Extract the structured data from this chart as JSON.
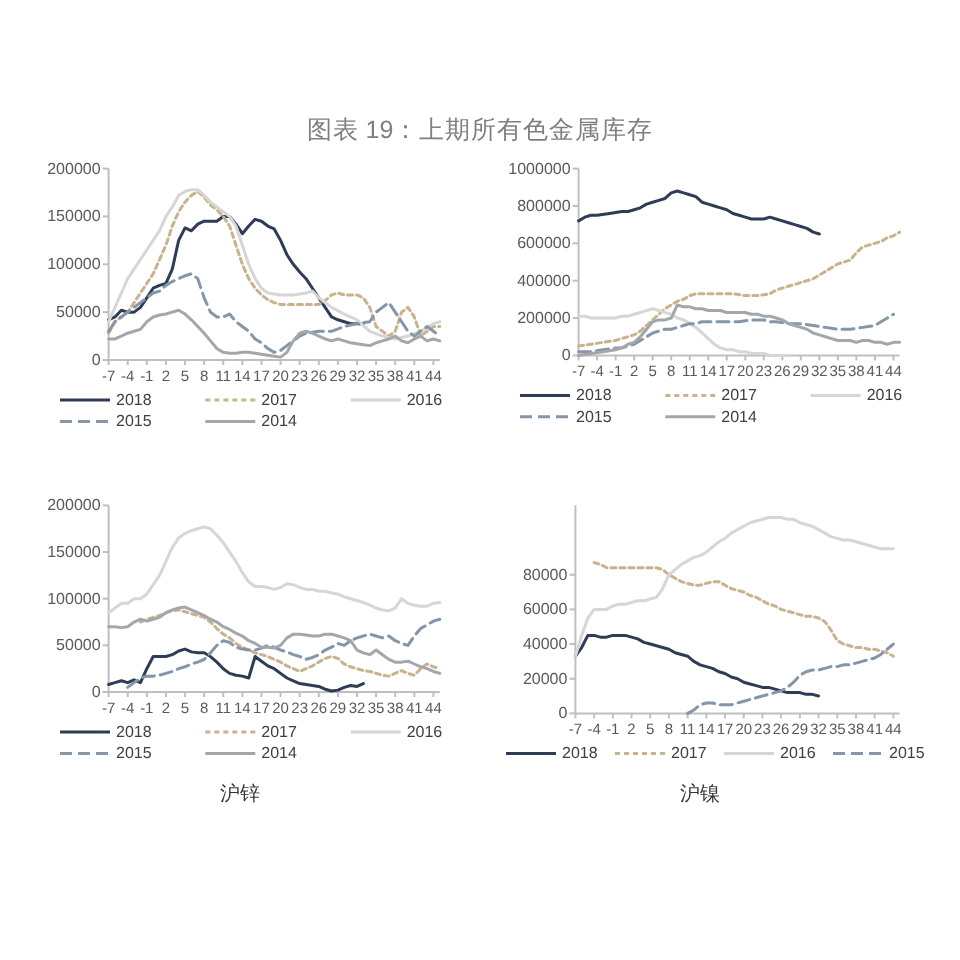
{
  "chart_data": [
    {
      "type": "line",
      "title": "图表 19：上期所有色金属库存",
      "xlim": [
        -7,
        45
      ],
      "xticks": [
        -7,
        -4,
        -1,
        2,
        5,
        8,
        11,
        14,
        17,
        20,
        23,
        26,
        29,
        32,
        35,
        38,
        41,
        44
      ],
      "ylim": [
        0,
        200000
      ],
      "yticks": [
        0,
        50000,
        100000,
        150000,
        200000
      ],
      "legend": "bottom",
      "series": [
        {
          "name": "2018",
          "color": "#2e3d55",
          "line_style": "solid",
          "x": [
            -7,
            -6,
            -5,
            -4,
            -3,
            -2,
            -1,
            0,
            1,
            2,
            3,
            4,
            5,
            6,
            7,
            8,
            9,
            10,
            11,
            12,
            13,
            14,
            15,
            16,
            17,
            18,
            19,
            20,
            21,
            22,
            23,
            24,
            25,
            26,
            27,
            28,
            29,
            30,
            31,
            32,
            33
          ],
          "values": [
            42000,
            45000,
            52000,
            50000,
            50000,
            55000,
            65000,
            75000,
            78000,
            80000,
            95000,
            125000,
            138000,
            135000,
            142000,
            145000,
            145000,
            145000,
            150000,
            150000,
            142000,
            132000,
            140000,
            147000,
            145000,
            140000,
            137000,
            125000,
            110000,
            100000,
            92000,
            85000,
            75000,
            65000,
            55000,
            45000,
            42000,
            40000,
            38000,
            38000,
            38000
          ]
        },
        {
          "name": "2017",
          "color": "#c8b38e",
          "line_style": "dotted",
          "x": [
            -7,
            -6,
            -5,
            -4,
            -3,
            -2,
            -1,
            0,
            1,
            2,
            3,
            4,
            5,
            6,
            7,
            8,
            9,
            10,
            11,
            12,
            13,
            14,
            15,
            16,
            17,
            18,
            19,
            20,
            22,
            24,
            26,
            27,
            28,
            29,
            30,
            32,
            33,
            34,
            35,
            36,
            37,
            38,
            39,
            40,
            41,
            42,
            43,
            44,
            45
          ],
          "values": [
            28000,
            40000,
            45000,
            50000,
            60000,
            70000,
            80000,
            90000,
            105000,
            120000,
            140000,
            155000,
            165000,
            172000,
            176000,
            170000,
            162000,
            157000,
            150000,
            140000,
            120000,
            100000,
            85000,
            75000,
            68000,
            63000,
            60000,
            58000,
            58000,
            58000,
            58000,
            62000,
            68000,
            70000,
            68000,
            68000,
            65000,
            55000,
            35000,
            30000,
            25000,
            30000,
            50000,
            55000,
            45000,
            25000,
            30000,
            35000,
            35000
          ]
        },
        {
          "name": "2016",
          "color": "#d6d6d6",
          "line_style": "solid",
          "x": [
            -7,
            -6,
            -5,
            -4,
            -3,
            -2,
            -1,
            0,
            1,
            2,
            3,
            4,
            5,
            6,
            7,
            8,
            9,
            10,
            11,
            12,
            13,
            14,
            15,
            16,
            17,
            18,
            20,
            22,
            24,
            25,
            26,
            28,
            30,
            32,
            34,
            36,
            38,
            40,
            42,
            44,
            45
          ],
          "values": [
            40000,
            55000,
            70000,
            85000,
            95000,
            105000,
            115000,
            125000,
            135000,
            150000,
            160000,
            172000,
            176000,
            178000,
            178000,
            172000,
            165000,
            160000,
            155000,
            150000,
            140000,
            120000,
            100000,
            85000,
            75000,
            70000,
            68000,
            68000,
            70000,
            72000,
            65000,
            55000,
            48000,
            42000,
            30000,
            25000,
            22000,
            25000,
            30000,
            38000,
            40000
          ]
        },
        {
          "name": "2015",
          "color": "#8496a7",
          "line_style": "dashed",
          "x": [
            -7,
            -6,
            -5,
            -4,
            -3,
            -2,
            -1,
            0,
            1,
            2,
            3,
            4,
            5,
            6,
            7,
            8,
            9,
            10,
            11,
            12,
            13,
            14,
            15,
            16,
            17,
            18,
            19,
            20,
            21,
            22,
            23,
            24,
            26,
            28,
            30,
            32,
            34,
            35,
            36,
            37,
            38,
            39,
            40,
            41,
            42,
            43,
            44,
            45
          ],
          "values": [
            30000,
            40000,
            45000,
            50000,
            55000,
            60000,
            65000,
            70000,
            72000,
            78000,
            82000,
            85000,
            88000,
            90000,
            85000,
            65000,
            50000,
            45000,
            45000,
            48000,
            40000,
            35000,
            30000,
            22000,
            18000,
            12000,
            8000,
            10000,
            15000,
            20000,
            25000,
            28000,
            30000,
            30000,
            35000,
            38000,
            40000,
            50000,
            55000,
            60000,
            50000,
            40000,
            30000,
            25000,
            30000,
            35000,
            30000,
            25000
          ]
        },
        {
          "name": "2014",
          "color": "#a3a7ab",
          "line_style": "solid",
          "x": [
            -7,
            -6,
            -5,
            -4,
            -3,
            -2,
            -1,
            0,
            1,
            2,
            3,
            4,
            5,
            6,
            7,
            8,
            9,
            10,
            11,
            12,
            13,
            14,
            15,
            16,
            17,
            18,
            19,
            20,
            21,
            22,
            23,
            24,
            25,
            26,
            27,
            28,
            29,
            30,
            31,
            32,
            33,
            34,
            35,
            36,
            37,
            38,
            39,
            40,
            41,
            42,
            43,
            44,
            45
          ],
          "values": [
            22000,
            22000,
            25000,
            28000,
            30000,
            32000,
            40000,
            45000,
            47000,
            48000,
            50000,
            52000,
            48000,
            42000,
            35000,
            28000,
            20000,
            12000,
            8000,
            7000,
            7000,
            8000,
            8000,
            7000,
            6000,
            5000,
            4000,
            3000,
            8000,
            20000,
            28000,
            30000,
            28000,
            25000,
            22000,
            20000,
            22000,
            20000,
            18000,
            17000,
            16000,
            15000,
            18000,
            20000,
            22000,
            25000,
            20000,
            18000,
            22000,
            25000,
            20000,
            22000,
            20000
          ]
        }
      ]
    },
    {
      "type": "line",
      "xlim": [
        -7,
        45
      ],
      "xticks": [
        -7,
        -4,
        -1,
        2,
        5,
        8,
        11,
        14,
        17,
        20,
        23,
        26,
        29,
        32,
        35,
        38,
        41,
        44
      ],
      "ylim": [
        0,
        1000000
      ],
      "yticks": [
        0,
        200000,
        400000,
        600000,
        800000,
        1000000
      ],
      "legend": "bottom",
      "series": [
        {
          "name": "2018",
          "color": "#2e3d55",
          "line_style": "solid",
          "x": [
            -7,
            -6,
            -5,
            -4,
            -2,
            0,
            1,
            2,
            3,
            4,
            5,
            6,
            7,
            8,
            9,
            10,
            11,
            12,
            13,
            14,
            15,
            16,
            17,
            18,
            19,
            20,
            21,
            22,
            23,
            24,
            25,
            26,
            27,
            28,
            29,
            30,
            31,
            32
          ],
          "values": [
            720000,
            740000,
            750000,
            750000,
            760000,
            770000,
            770000,
            780000,
            790000,
            810000,
            820000,
            830000,
            840000,
            870000,
            880000,
            870000,
            860000,
            850000,
            820000,
            810000,
            800000,
            790000,
            780000,
            760000,
            750000,
            740000,
            730000,
            730000,
            730000,
            740000,
            730000,
            720000,
            710000,
            700000,
            690000,
            680000,
            660000,
            650000
          ]
        },
        {
          "name": "2017",
          "color": "#c8b38e",
          "line_style": "dotted",
          "x": [
            -7,
            -5,
            -3,
            -1,
            0,
            1,
            2,
            3,
            4,
            5,
            6,
            7,
            8,
            9,
            10,
            11,
            12,
            13,
            14,
            16,
            18,
            20,
            22,
            24,
            25,
            26,
            27,
            28,
            29,
            30,
            31,
            32,
            33,
            34,
            35,
            36,
            37,
            38,
            39,
            40,
            41,
            42,
            43,
            44,
            45
          ],
          "values": [
            50000,
            60000,
            70000,
            80000,
            90000,
            100000,
            110000,
            130000,
            160000,
            190000,
            220000,
            250000,
            270000,
            290000,
            300000,
            320000,
            330000,
            330000,
            330000,
            330000,
            330000,
            320000,
            320000,
            330000,
            350000,
            360000,
            370000,
            380000,
            390000,
            400000,
            410000,
            430000,
            450000,
            470000,
            490000,
            500000,
            510000,
            550000,
            580000,
            590000,
            600000,
            610000,
            630000,
            640000,
            660000
          ]
        },
        {
          "name": "2016",
          "color": "#d6d6d6",
          "line_style": "solid",
          "x": [
            -7,
            -6,
            -5,
            -4,
            -3,
            -2,
            -1,
            0,
            1,
            2,
            3,
            4,
            5,
            6,
            7,
            8,
            9,
            10,
            11,
            12,
            13,
            14,
            15,
            16,
            17,
            18,
            19,
            20,
            21,
            22,
            23,
            24,
            25,
            26,
            27
          ],
          "values": [
            210000,
            210000,
            200000,
            200000,
            200000,
            200000,
            200000,
            210000,
            210000,
            220000,
            230000,
            240000,
            250000,
            240000,
            230000,
            220000,
            200000,
            190000,
            170000,
            150000,
            120000,
            90000,
            60000,
            40000,
            30000,
            30000,
            20000,
            20000,
            10000,
            10000,
            10000,
            0,
            0,
            0,
            0
          ]
        },
        {
          "name": "2015",
          "color": "#8496a7",
          "line_style": "dashed",
          "x": [
            -7,
            -5,
            -3,
            -1,
            0,
            1,
            2,
            3,
            4,
            5,
            6,
            7,
            8,
            9,
            10,
            11,
            12,
            13,
            15,
            17,
            19,
            21,
            23,
            24,
            25,
            27,
            29,
            31,
            33,
            35,
            37,
            39,
            41,
            43,
            44
          ],
          "values": [
            20000,
            20000,
            30000,
            40000,
            40000,
            50000,
            60000,
            80000,
            100000,
            120000,
            130000,
            140000,
            140000,
            150000,
            160000,
            170000,
            170000,
            180000,
            180000,
            180000,
            180000,
            190000,
            190000,
            180000,
            180000,
            170000,
            170000,
            160000,
            150000,
            140000,
            140000,
            150000,
            160000,
            200000,
            220000
          ]
        },
        {
          "name": "2014",
          "color": "#a3a7ab",
          "line_style": "solid",
          "x": [
            -7,
            -5,
            -3,
            -1,
            0,
            1,
            2,
            3,
            4,
            5,
            6,
            7,
            8,
            9,
            10,
            11,
            12,
            13,
            14,
            15,
            16,
            17,
            18,
            19,
            20,
            21,
            22,
            23,
            24,
            25,
            26,
            27,
            28,
            29,
            30,
            31,
            32,
            33,
            34,
            35,
            36,
            37,
            38,
            39,
            40,
            41,
            42,
            43,
            44,
            45
          ],
          "values": [
            0,
            10000,
            20000,
            30000,
            40000,
            60000,
            70000,
            100000,
            140000,
            180000,
            190000,
            190000,
            200000,
            270000,
            260000,
            260000,
            250000,
            250000,
            240000,
            240000,
            240000,
            230000,
            230000,
            230000,
            230000,
            220000,
            220000,
            210000,
            210000,
            200000,
            190000,
            170000,
            160000,
            150000,
            140000,
            120000,
            110000,
            100000,
            90000,
            80000,
            80000,
            80000,
            70000,
            80000,
            80000,
            70000,
            70000,
            60000,
            70000,
            70000
          ]
        }
      ]
    },
    {
      "type": "line",
      "subtitle": "沪锌",
      "xlim": [
        -7,
        45
      ],
      "xticks": [
        -7,
        -4,
        -1,
        2,
        5,
        8,
        11,
        14,
        17,
        20,
        23,
        26,
        29,
        32,
        35,
        38,
        41,
        44
      ],
      "ylim": [
        0,
        200000
      ],
      "yticks": [
        0,
        50000,
        100000,
        150000,
        200000
      ],
      "legend": "bottom",
      "series": [
        {
          "name": "2018",
          "color": "#2e3d55",
          "line_style": "solid",
          "x": [
            -7,
            -6,
            -5,
            -4,
            -3,
            -2,
            -1,
            0,
            1,
            2,
            3,
            4,
            5,
            6,
            7,
            8,
            9,
            10,
            11,
            12,
            13,
            14,
            15,
            16,
            17,
            18,
            19,
            20,
            21,
            22,
            23,
            24,
            25,
            26,
            27,
            28,
            29,
            30,
            31,
            32,
            33
          ],
          "values": [
            8000,
            10000,
            12000,
            10000,
            13000,
            10000,
            25000,
            38000,
            38000,
            38000,
            40000,
            44000,
            46000,
            43000,
            42000,
            42000,
            38000,
            32000,
            25000,
            20000,
            18000,
            17000,
            15000,
            38000,
            33000,
            28000,
            25000,
            20000,
            15000,
            12000,
            9000,
            8000,
            7000,
            6000,
            3000,
            1000,
            2000,
            5000,
            7000,
            6000,
            9000
          ]
        },
        {
          "name": "2017",
          "color": "#c8b38e",
          "line_style": "dotted",
          "x": [
            -2,
            -1,
            0,
            1,
            2,
            3,
            4,
            5,
            6,
            7,
            8,
            9,
            10,
            11,
            12,
            13,
            14,
            15,
            16,
            17,
            18,
            19,
            20,
            21,
            22,
            23,
            24,
            25,
            26,
            27,
            28,
            29,
            30,
            31,
            32,
            33,
            34,
            35,
            36,
            37,
            38,
            39,
            40,
            41,
            42,
            43,
            44,
            45
          ],
          "values": [
            75000,
            78000,
            80000,
            82000,
            85000,
            87000,
            88000,
            86000,
            84000,
            82000,
            80000,
            75000,
            68000,
            62000,
            58000,
            52000,
            48000,
            45000,
            42000,
            40000,
            38000,
            35000,
            32000,
            28000,
            25000,
            22000,
            25000,
            28000,
            32000,
            36000,
            38000,
            36000,
            30000,
            27000,
            25000,
            23000,
            22000,
            20000,
            18000,
            17000,
            20000,
            23000,
            20000,
            18000,
            25000,
            30000,
            27000,
            25000
          ]
        },
        {
          "name": "2016",
          "color": "#d6d6d6",
          "line_style": "solid",
          "x": [
            -7,
            -6,
            -5,
            -4,
            -3,
            -2,
            -1,
            0,
            1,
            2,
            3,
            4,
            5,
            6,
            7,
            8,
            9,
            10,
            11,
            12,
            13,
            14,
            15,
            16,
            17,
            18,
            19,
            20,
            21,
            22,
            23,
            24,
            25,
            26,
            27,
            28,
            29,
            30,
            31,
            32,
            33,
            34,
            35,
            36,
            37,
            38,
            39,
            40,
            41,
            42,
            43,
            44,
            45
          ],
          "values": [
            85000,
            90000,
            95000,
            95000,
            100000,
            100000,
            105000,
            115000,
            125000,
            140000,
            155000,
            165000,
            170000,
            173000,
            175000,
            177000,
            175000,
            168000,
            160000,
            150000,
            140000,
            128000,
            118000,
            113000,
            113000,
            112000,
            110000,
            112000,
            116000,
            115000,
            112000,
            110000,
            110000,
            108000,
            108000,
            106000,
            105000,
            102000,
            100000,
            98000,
            96000,
            93000,
            90000,
            88000,
            87000,
            90000,
            100000,
            95000,
            93000,
            92000,
            92000,
            95000,
            96000
          ]
        },
        {
          "name": "2015",
          "color": "#8496a7",
          "line_style": "dashed",
          "x": [
            -4,
            -3,
            -2,
            -1,
            0,
            1,
            2,
            3,
            4,
            5,
            6,
            7,
            8,
            9,
            10,
            11,
            12,
            13,
            14,
            15,
            16,
            17,
            18,
            19,
            20,
            21,
            22,
            23,
            24,
            25,
            26,
            27,
            28,
            29,
            30,
            31,
            32,
            33,
            34,
            35,
            36,
            37,
            38,
            39,
            40,
            41,
            42,
            43,
            44,
            45
          ],
          "values": [
            5000,
            10000,
            15000,
            17000,
            17000,
            18000,
            20000,
            22000,
            25000,
            27000,
            30000,
            32000,
            35000,
            42000,
            50000,
            55000,
            53000,
            48000,
            46000,
            45000,
            45000,
            47000,
            50000,
            48000,
            45000,
            43000,
            40000,
            38000,
            35000,
            37000,
            40000,
            45000,
            48000,
            52000,
            50000,
            55000,
            58000,
            60000,
            62000,
            60000,
            58000,
            60000,
            55000,
            52000,
            50000,
            60000,
            68000,
            72000,
            76000,
            78000
          ]
        },
        {
          "name": "2014",
          "color": "#a3a7ab",
          "line_style": "solid",
          "x": [
            -7,
            -6,
            -5,
            -4,
            -3,
            -2,
            -1,
            0,
            1,
            2,
            3,
            4,
            5,
            6,
            7,
            8,
            9,
            10,
            11,
            12,
            13,
            14,
            15,
            16,
            17,
            18,
            19,
            20,
            21,
            22,
            23,
            24,
            25,
            26,
            27,
            28,
            29,
            30,
            31,
            32,
            33,
            34,
            35,
            36,
            37,
            38,
            39,
            40,
            41,
            42,
            43,
            44,
            45
          ],
          "values": [
            70000,
            70000,
            69000,
            70000,
            75000,
            78000,
            76000,
            78000,
            80000,
            85000,
            88000,
            90000,
            91000,
            88000,
            85000,
            82000,
            78000,
            75000,
            70000,
            67000,
            63000,
            60000,
            55000,
            52000,
            48000,
            48000,
            47000,
            50000,
            58000,
            62000,
            62000,
            61000,
            60000,
            60000,
            62000,
            62000,
            60000,
            58000,
            55000,
            45000,
            42000,
            40000,
            45000,
            40000,
            35000,
            32000,
            32000,
            33000,
            30000,
            27000,
            25000,
            22000,
            20000
          ]
        }
      ]
    },
    {
      "type": "line",
      "subtitle": "沪镍",
      "xlim": [
        -7,
        45
      ],
      "xticks": [
        -7,
        -4,
        -1,
        2,
        5,
        8,
        11,
        14,
        17,
        20,
        23,
        26,
        29,
        32,
        35,
        38,
        41,
        44
      ],
      "ylim": [
        0,
        120000
      ],
      "yticks": [
        0,
        20000,
        40000,
        60000,
        80000
      ],
      "legend": "bottom",
      "series": [
        {
          "name": "2018",
          "color": "#2e3d55",
          "line_style": "solid",
          "x": [
            -7,
            -6,
            -5,
            -4,
            -3,
            -2,
            -1,
            0,
            1,
            2,
            3,
            4,
            5,
            6,
            7,
            8,
            9,
            10,
            11,
            12,
            13,
            14,
            15,
            16,
            17,
            18,
            19,
            20,
            21,
            22,
            23,
            24,
            25,
            26,
            27,
            28,
            29,
            30,
            31,
            32
          ],
          "values": [
            33000,
            38000,
            45000,
            45000,
            44000,
            44000,
            45000,
            45000,
            45000,
            44000,
            43000,
            41000,
            40000,
            39000,
            38000,
            37000,
            35000,
            34000,
            33000,
            30000,
            28000,
            27000,
            26000,
            24000,
            23000,
            21000,
            20000,
            18000,
            17000,
            16000,
            15000,
            15000,
            14000,
            13000,
            12000,
            12000,
            12000,
            11000,
            11000,
            10000
          ]
        },
        {
          "name": "2017",
          "color": "#c8b38e",
          "line_style": "dotted",
          "x": [
            -4,
            -3,
            -2,
            -1,
            0,
            1,
            2,
            3,
            4,
            5,
            6,
            7,
            8,
            9,
            10,
            11,
            12,
            13,
            14,
            15,
            16,
            17,
            18,
            19,
            20,
            21,
            22,
            23,
            24,
            25,
            26,
            27,
            28,
            29,
            30,
            31,
            32,
            33,
            34,
            35,
            36,
            37,
            38,
            39,
            40,
            41,
            42,
            43,
            44
          ],
          "values": [
            87000,
            86000,
            84000,
            84000,
            84000,
            84000,
            84000,
            84000,
            84000,
            84000,
            84000,
            83000,
            80000,
            78000,
            76000,
            75000,
            74000,
            74000,
            75000,
            76000,
            76000,
            74000,
            72000,
            71000,
            70000,
            68000,
            67000,
            65000,
            63000,
            62000,
            60000,
            59000,
            58000,
            57000,
            56000,
            56000,
            55000,
            53000,
            48000,
            42000,
            40000,
            39000,
            38000,
            38000,
            37000,
            37000,
            36000,
            35000,
            33000
          ]
        },
        {
          "name": "2016",
          "color": "#d6d6d6",
          "line_style": "solid",
          "x": [
            -7,
            -6,
            -5,
            -4,
            -3,
            -2,
            -1,
            0,
            1,
            2,
            3,
            4,
            5,
            6,
            7,
            8,
            9,
            10,
            11,
            12,
            13,
            14,
            15,
            16,
            17,
            18,
            19,
            20,
            21,
            22,
            23,
            24,
            25,
            26,
            27,
            28,
            29,
            30,
            31,
            32,
            33,
            34,
            35,
            36,
            37,
            38,
            39,
            40,
            41,
            42,
            43,
            44
          ],
          "values": [
            33000,
            45000,
            55000,
            60000,
            60000,
            60000,
            62000,
            63000,
            63000,
            64000,
            65000,
            65000,
            66000,
            67000,
            72000,
            80000,
            83000,
            86000,
            88000,
            90000,
            91000,
            93000,
            96000,
            99000,
            101000,
            104000,
            106000,
            108000,
            110000,
            111000,
            112000,
            113000,
            113000,
            113000,
            112000,
            112000,
            110000,
            109000,
            108000,
            106000,
            104000,
            102000,
            101000,
            100000,
            100000,
            99000,
            98000,
            97000,
            96000,
            95000,
            95000,
            95000
          ]
        },
        {
          "name": "2015",
          "color": "#8496a7",
          "line_style": "dashed",
          "x": [
            11,
            12,
            13,
            14,
            15,
            16,
            17,
            18,
            19,
            20,
            21,
            22,
            23,
            24,
            25,
            26,
            27,
            28,
            29,
            30,
            31,
            32,
            33,
            34,
            35,
            36,
            37,
            38,
            39,
            40,
            41,
            42,
            43,
            44
          ],
          "values": [
            0,
            2000,
            5000,
            6000,
            6000,
            5000,
            5000,
            5000,
            6000,
            7000,
            8000,
            9000,
            10000,
            11000,
            12000,
            13000,
            15000,
            18000,
            22000,
            24000,
            25000,
            25000,
            26000,
            27000,
            27000,
            28000,
            28000,
            29000,
            30000,
            31000,
            32000,
            34000,
            37000,
            40000
          ]
        }
      ]
    }
  ]
}
